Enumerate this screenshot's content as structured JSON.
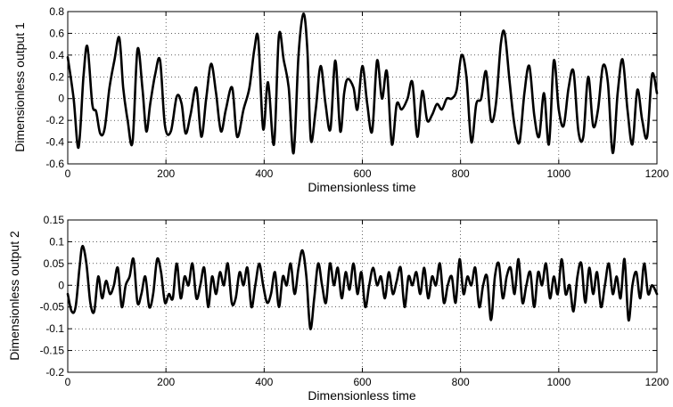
{
  "chart_data": [
    {
      "type": "line",
      "xlabel": "Dimensionless time",
      "ylabel": "Dimensionless output 1",
      "xlim": [
        0,
        1200
      ],
      "ylim": [
        -0.6,
        0.8
      ],
      "xticks": [
        0,
        200,
        400,
        600,
        800,
        1000,
        1200
      ],
      "yticks": [
        -0.6,
        -0.4,
        -0.2,
        0,
        0.2,
        0.4,
        0.6,
        0.8
      ],
      "xtick_labels": [
        "0",
        "200",
        "400",
        "600",
        "800",
        "1000",
        "1200"
      ],
      "ytick_labels": [
        "-0.6",
        "-0.4",
        "-0.2",
        "0",
        "0.2",
        "0.4",
        "0.6",
        "0.8"
      ],
      "grid": true,
      "series": [
        {
          "color": "#000000",
          "x": [
            0,
            12,
            22,
            32,
            40,
            50,
            58,
            66,
            75,
            85,
            95,
            105,
            113,
            122,
            132,
            142,
            152,
            160,
            168,
            178,
            188,
            198,
            210,
            222,
            232,
            240,
            250,
            262,
            272,
            282,
            292,
            302,
            312,
            322,
            335,
            345,
            358,
            370,
            380,
            388,
            398,
            408,
            420,
            430,
            440,
            450,
            460,
            470,
            480,
            488,
            495,
            505,
            515,
            525,
            535,
            545,
            555,
            563,
            570,
            582,
            590,
            600,
            610,
            620,
            630,
            640,
            650,
            660,
            670,
            680,
            692,
            702,
            712,
            722,
            732,
            742,
            752,
            762,
            772,
            782,
            792,
            802,
            812,
            822,
            832,
            842,
            852,
            862,
            872,
            882,
            890,
            900,
            910,
            920,
            930,
            940,
            950,
            960,
            970,
            980,
            990,
            1000,
            1010,
            1020,
            1030,
            1040,
            1050,
            1060,
            1070,
            1080,
            1090,
            1100,
            1110,
            1120,
            1130,
            1140,
            1150,
            1160,
            1170,
            1180,
            1190,
            1200
          ],
          "y": [
            0.38,
            0.0,
            -0.45,
            0.2,
            0.48,
            -0.05,
            -0.12,
            -0.32,
            -0.28,
            0.1,
            0.35,
            0.56,
            0.1,
            -0.2,
            -0.4,
            0.45,
            0.1,
            -0.3,
            -0.05,
            0.22,
            0.35,
            -0.25,
            -0.3,
            0.02,
            -0.05,
            -0.32,
            -0.15,
            0.1,
            -0.35,
            0.0,
            0.32,
            0.05,
            -0.3,
            -0.1,
            0.1,
            -0.35,
            -0.1,
            0.1,
            0.45,
            0.55,
            -0.28,
            0.15,
            -0.42,
            0.58,
            0.35,
            0.1,
            -0.5,
            0.4,
            0.78,
            0.45,
            -0.38,
            -0.1,
            0.3,
            -0.05,
            -0.28,
            0.35,
            -0.3,
            0.05,
            0.18,
            0.1,
            -0.1,
            0.3,
            -0.05,
            -0.3,
            0.35,
            0.0,
            0.25,
            -0.42,
            -0.05,
            -0.1,
            0.0,
            0.15,
            -0.35,
            0.07,
            -0.2,
            -0.15,
            -0.05,
            -0.1,
            0.0,
            0.0,
            0.08,
            0.4,
            0.2,
            -0.4,
            -0.05,
            0.0,
            0.25,
            -0.2,
            -0.05,
            0.5,
            0.6,
            0.15,
            -0.25,
            -0.4,
            0.05,
            0.3,
            -0.15,
            -0.35,
            0.05,
            -0.42,
            0.35,
            -0.1,
            -0.25,
            0.1,
            0.25,
            -0.3,
            -0.35,
            0.2,
            -0.25,
            -0.1,
            0.3,
            0.15,
            -0.5,
            0.05,
            0.36,
            -0.1,
            -0.42,
            0.08,
            -0.2,
            -0.35,
            0.22,
            0.05
          ]
        }
      ]
    },
    {
      "type": "line",
      "xlabel": "Dimensionless time",
      "ylabel": "Dimensionless output 2",
      "xlim": [
        0,
        1200
      ],
      "ylim": [
        -0.2,
        0.15
      ],
      "xticks": [
        0,
        200,
        400,
        600,
        800,
        1000,
        1200
      ],
      "yticks": [
        -0.2,
        -0.15,
        -0.1,
        -0.05,
        0,
        0.05,
        0.1,
        0.15
      ],
      "xtick_labels": [
        "0",
        "200",
        "400",
        "600",
        "800",
        "1000",
        "1200"
      ],
      "ytick_labels": [
        "-0.2",
        "-0.15",
        "-0.1",
        "-0.05",
        "0",
        "0.05",
        "0.1",
        "0.15"
      ],
      "grid": true,
      "series": [
        {
          "color": "#000000",
          "x": [
            0,
            8,
            16,
            24,
            30,
            38,
            46,
            54,
            62,
            70,
            78,
            86,
            94,
            102,
            110,
            118,
            126,
            134,
            142,
            150,
            158,
            166,
            174,
            182,
            190,
            198,
            206,
            214,
            222,
            230,
            238,
            246,
            254,
            262,
            270,
            278,
            286,
            294,
            302,
            310,
            318,
            326,
            334,
            342,
            350,
            358,
            366,
            374,
            382,
            390,
            398,
            406,
            414,
            422,
            430,
            438,
            446,
            454,
            462,
            470,
            478,
            486,
            494,
            502,
            510,
            518,
            526,
            534,
            542,
            550,
            558,
            566,
            574,
            582,
            590,
            598,
            606,
            614,
            622,
            630,
            638,
            646,
            654,
            662,
            670,
            678,
            686,
            694,
            702,
            710,
            718,
            726,
            734,
            742,
            750,
            758,
            766,
            774,
            782,
            790,
            798,
            806,
            814,
            822,
            830,
            838,
            846,
            854,
            862,
            870,
            878,
            886,
            894,
            902,
            910,
            918,
            926,
            934,
            942,
            950,
            958,
            966,
            974,
            982,
            990,
            998,
            1006,
            1014,
            1022,
            1030,
            1038,
            1046,
            1054,
            1062,
            1070,
            1078,
            1086,
            1094,
            1102,
            1110,
            1118,
            1126,
            1134,
            1142,
            1150,
            1158,
            1166,
            1174,
            1182,
            1190,
            1200
          ],
          "y": [
            -0.02,
            -0.06,
            -0.05,
            0.04,
            0.09,
            0.05,
            -0.04,
            -0.06,
            0.02,
            -0.03,
            0.01,
            -0.02,
            0.0,
            0.04,
            -0.05,
            0.0,
            0.02,
            0.06,
            -0.04,
            -0.02,
            0.02,
            -0.05,
            -0.02,
            0.06,
            0.03,
            -0.04,
            -0.02,
            -0.03,
            0.05,
            -0.03,
            0.02,
            0.0,
            0.05,
            -0.03,
            0.0,
            0.04,
            -0.05,
            0.02,
            -0.02,
            0.03,
            0.0,
            0.05,
            -0.04,
            -0.03,
            0.03,
            0.0,
            0.04,
            -0.05,
            0.0,
            0.05,
            0.0,
            -0.04,
            -0.02,
            0.03,
            -0.05,
            0.02,
            0.0,
            0.05,
            -0.02,
            0.04,
            0.08,
            0.02,
            -0.1,
            -0.03,
            0.05,
            0.0,
            -0.04,
            0.05,
            0.0,
            0.04,
            -0.03,
            0.03,
            -0.01,
            0.05,
            -0.02,
            0.03,
            -0.05,
            0.0,
            0.04,
            0.0,
            0.02,
            -0.03,
            0.03,
            -0.02,
            0.01,
            0.04,
            -0.05,
            0.02,
            0.0,
            0.03,
            -0.02,
            0.04,
            -0.03,
            0.02,
            0.0,
            0.05,
            -0.04,
            0.0,
            0.02,
            -0.04,
            0.06,
            -0.02,
            0.02,
            0.0,
            0.04,
            -0.05,
            0.0,
            0.02,
            -0.08,
            0.02,
            0.05,
            -0.03,
            0.02,
            0.04,
            -0.02,
            0.06,
            -0.04,
            0.0,
            0.03,
            -0.05,
            0.03,
            0.0,
            0.05,
            -0.03,
            0.02,
            -0.02,
            0.06,
            -0.02,
            0.0,
            -0.06,
            0.02,
            0.05,
            -0.04,
            0.04,
            -0.02,
            0.03,
            -0.05,
            0.0,
            0.05,
            -0.02,
            0.02,
            -0.03,
            0.06,
            -0.08,
            0.0,
            0.03,
            -0.03,
            0.05,
            -0.02,
            0.0,
            -0.02
          ]
        }
      ]
    }
  ]
}
